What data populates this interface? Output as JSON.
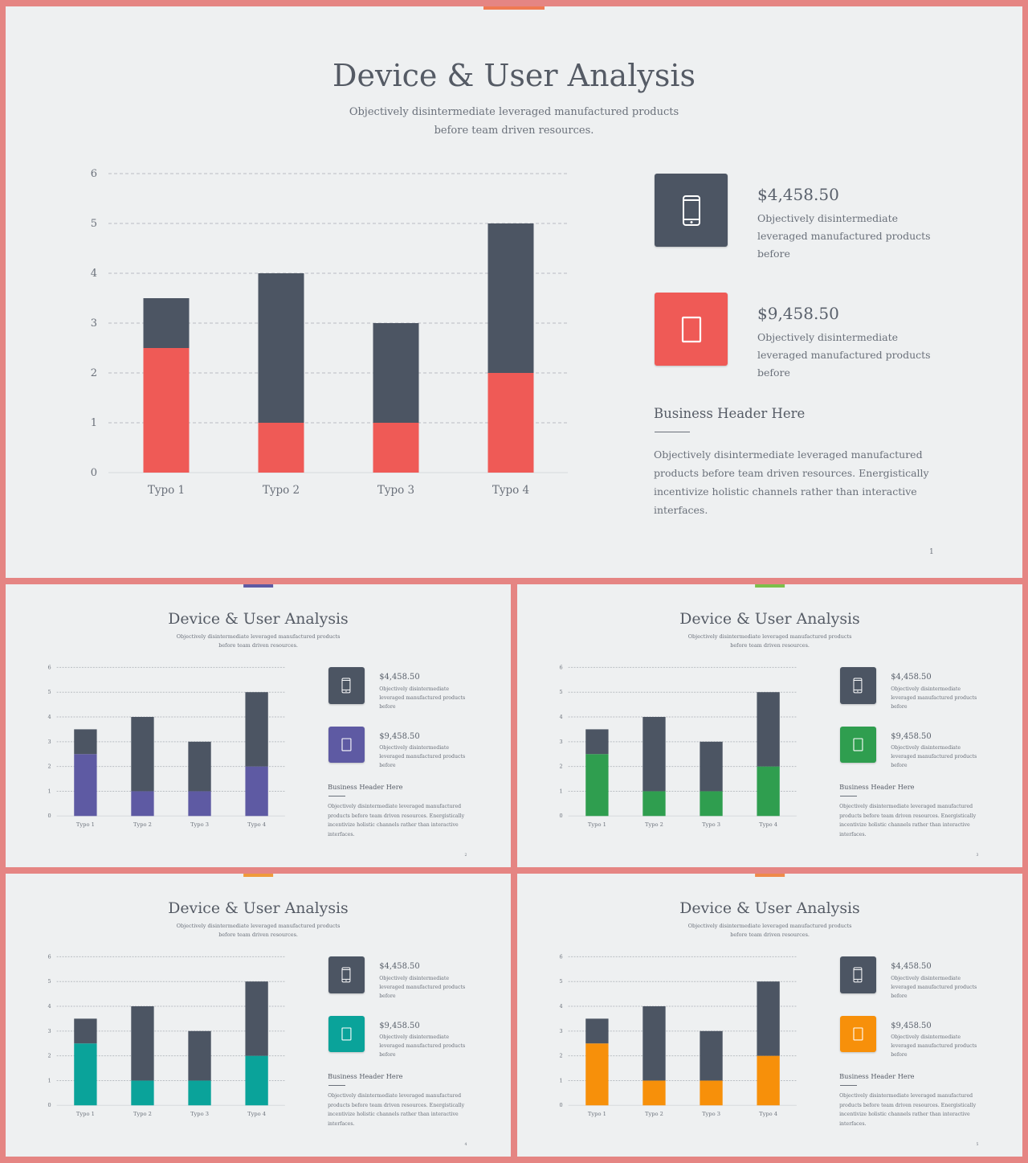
{
  "colors": {
    "background": "#e58583",
    "slide": "#eef0f1",
    "dark": "#4c5563"
  },
  "slides": [
    {
      "title": "Device & User Analysis",
      "subtitle": "Objectively disintermediate leveraged manufactured products before team driven resources.",
      "accent": "#ef5a56",
      "top_bar": "#ef7a52",
      "card1": {
        "icon": "smartphone-icon",
        "price": "$4,458.50",
        "desc": "Objectively disintermediate leveraged manufactured products before"
      },
      "card2": {
        "icon": "tablet-icon",
        "price": "$9,458.50",
        "desc": "Objectively disintermediate leveraged manufactured products before"
      },
      "business_header": "Business Header Here",
      "business_body": "Objectively disintermediate leveraged manufactured products before team driven resources. Energistically incentivize holistic channels rather than interactive interfaces.",
      "page_number": "1"
    },
    {
      "title": "Device & User Analysis",
      "subtitle": "Objectively disintermediate leveraged manufactured products before team driven resources.",
      "accent": "#5e5aa3",
      "top_bar": "#5e5aa3",
      "card1": {
        "icon": "smartphone-icon",
        "price": "$4,458.50",
        "desc": "Objectively disintermediate leveraged manufactured products before"
      },
      "card2": {
        "icon": "tablet-icon",
        "price": "$9,458.50",
        "desc": "Objectively disintermediate leveraged manufactured products before"
      },
      "business_header": "Business Header Here",
      "business_body": "Objectively disintermediate leveraged manufactured products before team driven resources. Energistically incentivize holistic channels rather than interactive interfaces.",
      "page_number": "2"
    },
    {
      "title": "Device & User Analysis",
      "subtitle": "Objectively disintermediate leveraged manufactured products before team driven resources.",
      "accent": "#2f9e4f",
      "top_bar": "#7cbf4a",
      "card1": {
        "icon": "smartphone-icon",
        "price": "$4,458.50",
        "desc": "Objectively disintermediate leveraged manufactured products before"
      },
      "card2": {
        "icon": "tablet-icon",
        "price": "$9,458.50",
        "desc": "Objectively disintermediate leveraged manufactured products before"
      },
      "business_header": "Business Header Here",
      "business_body": "Objectively disintermediate leveraged manufactured products before team driven resources. Energistically incentivize holistic channels rather than interactive interfaces.",
      "page_number": "3"
    },
    {
      "title": "Device & User Analysis",
      "subtitle": "Objectively disintermediate leveraged manufactured products before team driven resources.",
      "accent": "#0aa39a",
      "top_bar": "#ef9a3a",
      "card1": {
        "icon": "smartphone-icon",
        "price": "$4,458.50",
        "desc": "Objectively disintermediate leveraged manufactured products before"
      },
      "card2": {
        "icon": "tablet-icon",
        "price": "$9,458.50",
        "desc": "Objectively disintermediate leveraged manufactured products before"
      },
      "business_header": "Business Header Here",
      "business_body": "Objectively disintermediate leveraged manufactured products before team driven resources. Energistically incentivize holistic channels rather than interactive interfaces.",
      "page_number": "4"
    },
    {
      "title": "Device & User Analysis",
      "subtitle": "Objectively disintermediate leveraged manufactured products before team driven resources.",
      "accent": "#f7900a",
      "top_bar": "#ef8a4a",
      "card1": {
        "icon": "smartphone-icon",
        "price": "$4,458.50",
        "desc": "Objectively disintermediate leveraged manufactured products before"
      },
      "card2": {
        "icon": "tablet-icon",
        "price": "$9,458.50",
        "desc": "Objectively disintermediate leveraged manufactured products before"
      },
      "business_header": "Business Header Here",
      "business_body": "Objectively disintermediate leveraged manufactured products before team driven resources. Energistically incentivize holistic channels rather than interactive interfaces.",
      "page_number": "5"
    }
  ],
  "chart_data": {
    "type": "bar",
    "stacked": true,
    "categories": [
      "Typo 1",
      "Typo 2",
      "Typo 3",
      "Typo 4"
    ],
    "series": [
      {
        "values": [
          2.5,
          1,
          1,
          2
        ]
      },
      {
        "values": [
          1,
          3,
          2,
          3
        ]
      }
    ],
    "y_ticks": [
      "0",
      "1",
      "2",
      "3",
      "4",
      "5",
      "6"
    ],
    "ylim": [
      0,
      6
    ],
    "grid": true
  }
}
